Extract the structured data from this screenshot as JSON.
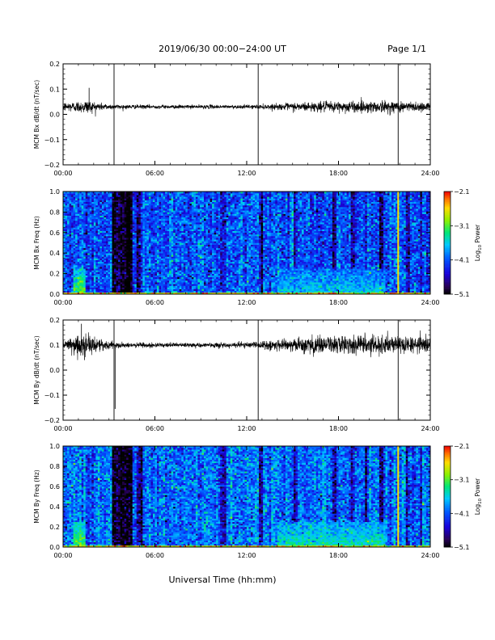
{
  "header": {
    "title": "2019/06/30  00:00−24:00 UT",
    "page_label": "Page 1/1"
  },
  "footer": {
    "xlabel": "Universal Time (hh:mm)"
  },
  "colorbar": {
    "range": [
      -5.1,
      -2.1
    ],
    "tick_labels": [
      "−2.1",
      "−3.1",
      "−4.1",
      "−5.1"
    ],
    "tick_values": [
      -2.1,
      -3.1,
      -4.1,
      -5.1
    ],
    "label_base": "Log",
    "label_sub": "10",
    "label_tail": " Power"
  },
  "colors": {
    "trace": "#000000",
    "low": "#000020",
    "background_power": "#1e88ff",
    "high": "#ff0000"
  },
  "chart_data": [
    {
      "type": "line",
      "ylabel": "MCM Bx dB/dt (nT/sec)",
      "xlim": [
        0,
        24
      ],
      "ylim": [
        -0.2,
        0.2
      ],
      "x_ticks": [
        "00:00",
        "06:00",
        "12:00",
        "18:00",
        "24:00"
      ],
      "y_ticks": [
        "0.2",
        "0.1",
        "0.0",
        "−0.1",
        "−0.2"
      ],
      "y_tick_values": [
        0.2,
        0.1,
        0.0,
        -0.1,
        -0.2
      ],
      "baseline": 0.03,
      "amplitude_profile": [
        [
          0,
          0.01
        ],
        [
          1.0,
          0.012
        ],
        [
          1.5,
          0.015
        ],
        [
          2.5,
          0.008
        ],
        [
          3.3,
          0.005
        ],
        [
          6,
          0.004
        ],
        [
          9,
          0.004
        ],
        [
          12,
          0.004
        ],
        [
          14,
          0.006
        ],
        [
          15,
          0.009
        ],
        [
          18,
          0.012
        ],
        [
          21,
          0.013
        ],
        [
          24,
          0.01
        ]
      ],
      "spikes": [
        {
          "x": 1.7,
          "y": 0.105
        }
      ],
      "vertical_lines": [
        3.33,
        12.75,
        21.9
      ]
    },
    {
      "type": "heatmap",
      "ylabel": "MCM Bx Freq (Hz)",
      "xlim": [
        0,
        24
      ],
      "ylim": [
        0.0,
        1.0
      ],
      "x_ticks": [
        "00:00",
        "06:00",
        "12:00",
        "18:00",
        "24:00"
      ],
      "y_ticks": [
        "1.0",
        "0.8",
        "0.6",
        "0.4",
        "0.2",
        "0.0"
      ],
      "y_tick_values": [
        1.0,
        0.8,
        0.6,
        0.4,
        0.2,
        0.0
      ],
      "zlim": [
        -5.1,
        -2.1
      ],
      "background_log_power": -4.1,
      "dark_bands": [
        [
          3.2,
          4.5,
          -5.1
        ],
        [
          4.8,
          5.2,
          -4.6
        ],
        [
          10.3,
          10.6,
          -4.6
        ],
        [
          12.8,
          13.0,
          -4.6
        ],
        [
          15.1,
          15.3,
          -4.6
        ],
        [
          17.6,
          17.8,
          -4.7
        ],
        [
          18.8,
          19.1,
          -4.7
        ],
        [
          19.7,
          19.9,
          -4.7
        ],
        [
          20.7,
          20.9,
          -4.8
        ],
        [
          22.4,
          22.6,
          -4.7
        ],
        [
          23.3,
          23.5,
          -4.6
        ]
      ],
      "enhanced_regions": [
        [
          0.7,
          1.5,
          0.0,
          0.25,
          -3.1
        ],
        [
          14.0,
          21.0,
          0.0,
          0.25,
          -3.6
        ]
      ],
      "bright_line": {
        "x": 21.9,
        "log_power": -2.6
      }
    },
    {
      "type": "line",
      "ylabel": "MCM By dB/dt (nT/sec)",
      "xlim": [
        0,
        24
      ],
      "ylim": [
        -0.2,
        0.2
      ],
      "x_ticks": [
        "00:00",
        "06:00",
        "12:00",
        "18:00",
        "24:00"
      ],
      "y_ticks": [
        "0.2",
        "0.1",
        "0.0",
        "−0.1",
        "−0.2"
      ],
      "y_tick_values": [
        0.2,
        0.1,
        0.0,
        -0.1,
        -0.2
      ],
      "baseline": 0.1,
      "amplitude_profile": [
        [
          0,
          0.01
        ],
        [
          1.0,
          0.022
        ],
        [
          1.5,
          0.025
        ],
        [
          2.5,
          0.012
        ],
        [
          3.3,
          0.007
        ],
        [
          6,
          0.005
        ],
        [
          9,
          0.005
        ],
        [
          12,
          0.006
        ],
        [
          14,
          0.012
        ],
        [
          15,
          0.016
        ],
        [
          18,
          0.02
        ],
        [
          21,
          0.02
        ],
        [
          24,
          0.016
        ]
      ],
      "spikes": [
        {
          "x": 1.2,
          "y": 0.185
        },
        {
          "x": 1.4,
          "y": 0.04
        },
        {
          "x": 3.4,
          "y": -0.155
        }
      ],
      "vertical_lines": [
        3.33,
        12.75,
        21.9
      ]
    },
    {
      "type": "heatmap",
      "ylabel": "MCM By Freq (Hz)",
      "xlim": [
        0,
        24
      ],
      "ylim": [
        0.0,
        1.0
      ],
      "x_ticks": [
        "00:00",
        "06:00",
        "12:00",
        "18:00",
        "24:00"
      ],
      "y_ticks": [
        "1.0",
        "0.8",
        "0.6",
        "0.4",
        "0.2",
        "0.0"
      ],
      "y_tick_values": [
        1.0,
        0.8,
        0.6,
        0.4,
        0.2,
        0.0
      ],
      "zlim": [
        -5.1,
        -2.1
      ],
      "background_log_power": -4.0,
      "dark_bands": [
        [
          3.2,
          4.5,
          -5.1
        ],
        [
          4.8,
          5.2,
          -4.6
        ],
        [
          10.3,
          10.6,
          -4.6
        ],
        [
          12.8,
          13.0,
          -4.6
        ],
        [
          15.1,
          15.3,
          -4.6
        ],
        [
          17.6,
          17.8,
          -4.7
        ],
        [
          18.8,
          19.1,
          -4.7
        ],
        [
          19.7,
          19.9,
          -4.7
        ],
        [
          20.7,
          20.9,
          -4.8
        ],
        [
          22.4,
          22.6,
          -4.7
        ],
        [
          23.3,
          23.5,
          -4.6
        ]
      ],
      "enhanced_regions": [
        [
          0.7,
          1.5,
          0.0,
          0.25,
          -3.1
        ],
        [
          14.0,
          21.0,
          0.0,
          0.25,
          -3.4
        ]
      ],
      "bright_line": {
        "x": 21.9,
        "log_power": -2.6
      }
    }
  ]
}
